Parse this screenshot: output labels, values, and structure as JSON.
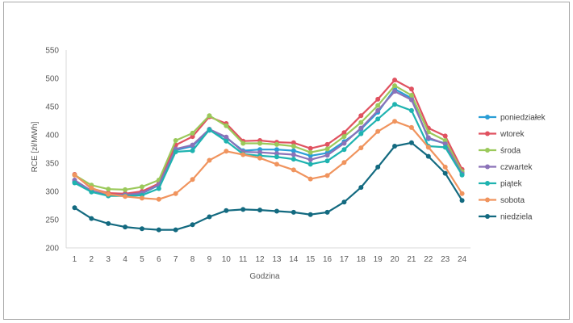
{
  "chart_data": {
    "type": "line",
    "title": "",
    "xlabel": "Godzina",
    "ylabel": "RCE [zł/MWh]",
    "ylim": [
      200,
      550
    ],
    "yticks": [
      200,
      250,
      300,
      350,
      400,
      450,
      500,
      550
    ],
    "x": [
      1,
      2,
      3,
      4,
      5,
      6,
      7,
      8,
      9,
      10,
      11,
      12,
      13,
      14,
      15,
      16,
      17,
      18,
      19,
      20,
      21,
      22,
      23,
      24
    ],
    "grid": false,
    "legend_position": "right",
    "series": [
      {
        "name": "poniedziałek",
        "color": "#2a9ed6",
        "values": [
          317,
          300,
          294,
          293,
          296,
          311,
          373,
          380,
          408,
          395,
          372,
          374,
          374,
          372,
          363,
          368,
          388,
          410,
          440,
          481,
          465,
          393,
          385,
          333
        ]
      },
      {
        "name": "wtorek",
        "color": "#e05260",
        "values": [
          330,
          305,
          297,
          296,
          300,
          314,
          382,
          397,
          432,
          420,
          389,
          390,
          387,
          386,
          376,
          383,
          404,
          434,
          463,
          497,
          481,
          412,
          398,
          339
        ]
      },
      {
        "name": "środa",
        "color": "#9bc95b",
        "values": [
          329,
          311,
          304,
          303,
          308,
          320,
          390,
          403,
          434,
          416,
          385,
          385,
          383,
          380,
          369,
          375,
          397,
          422,
          452,
          487,
          470,
          405,
          390,
          335
        ]
      },
      {
        "name": "czwartek",
        "color": "#8b72b8",
        "values": [
          320,
          301,
          294,
          294,
          297,
          312,
          375,
          382,
          410,
          396,
          370,
          369,
          367,
          365,
          356,
          364,
          385,
          412,
          443,
          477,
          462,
          395,
          384,
          331
        ]
      },
      {
        "name": "piątek",
        "color": "#1fb3b0",
        "values": [
          315,
          299,
          292,
          292,
          293,
          305,
          370,
          372,
          409,
          389,
          366,
          363,
          361,
          357,
          348,
          354,
          374,
          402,
          428,
          454,
          443,
          380,
          378,
          329
        ]
      },
      {
        "name": "sobota",
        "color": "#f0945e",
        "values": [
          329,
          306,
          295,
          291,
          288,
          286,
          296,
          321,
          355,
          371,
          365,
          359,
          348,
          338,
          322,
          328,
          351,
          377,
          406,
          424,
          413,
          378,
          343,
          296
        ]
      },
      {
        "name": "niedziela",
        "color": "#136a80",
        "values": [
          271,
          252,
          243,
          237,
          234,
          232,
          232,
          241,
          255,
          266,
          268,
          267,
          265,
          263,
          259,
          263,
          281,
          307,
          343,
          380,
          386,
          362,
          332,
          284
        ]
      }
    ]
  }
}
